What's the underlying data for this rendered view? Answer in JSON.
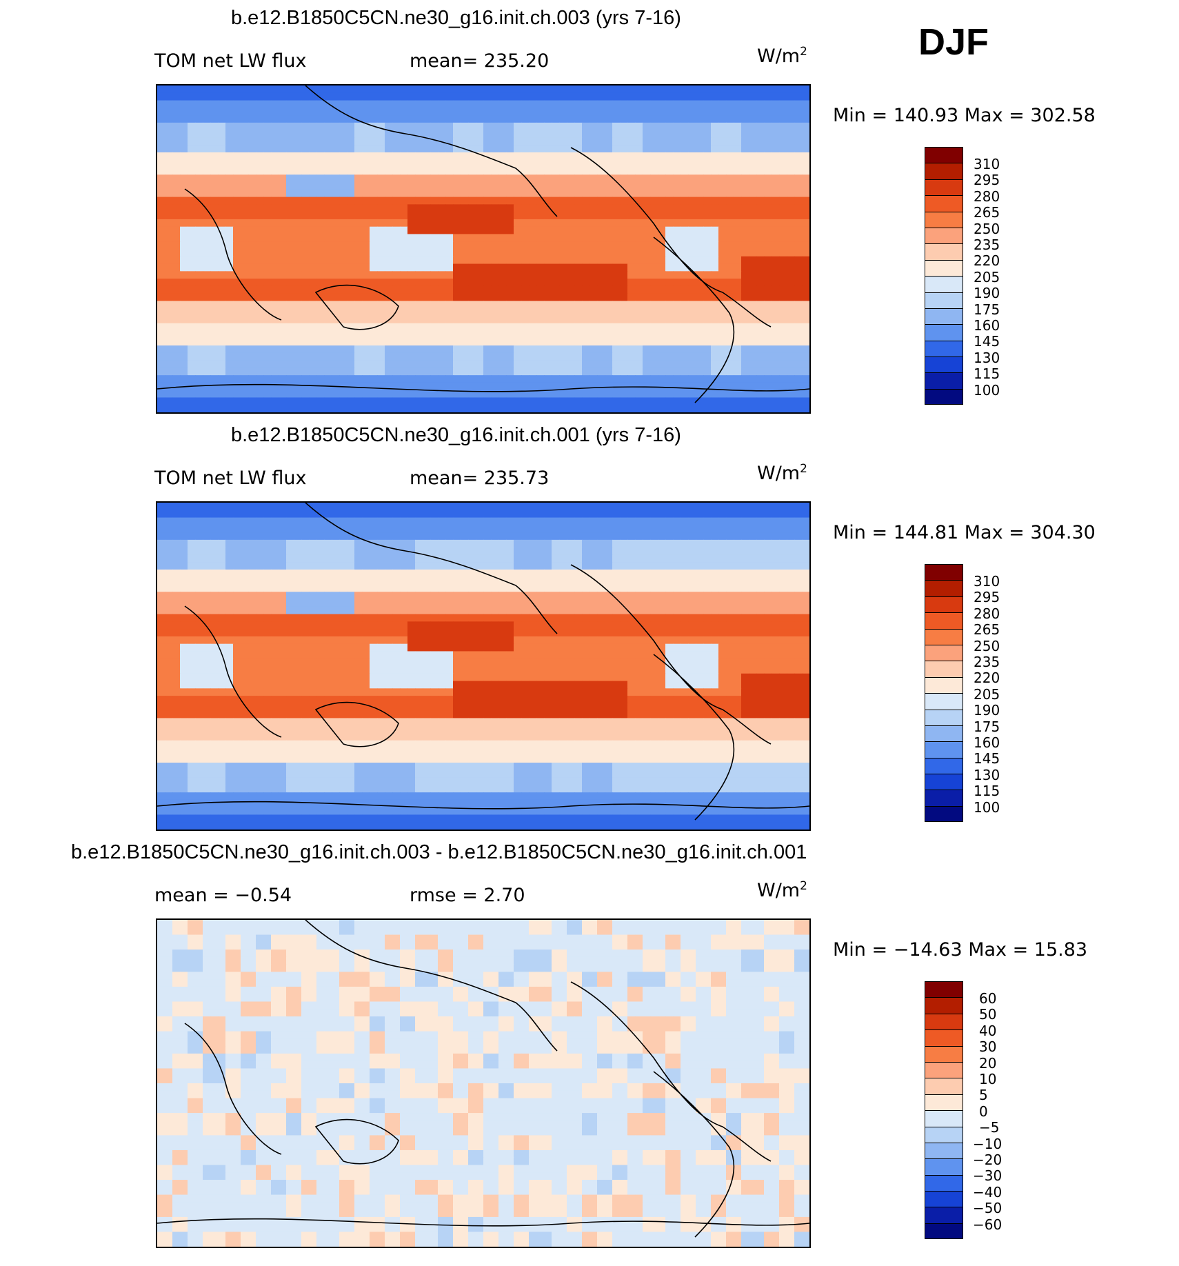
{
  "season": "DJF",
  "panels": [
    {
      "title": "b.e12.B1850C5CN.ne30_g16.init.ch.003 (yrs 7-16)",
      "left_label": "TOM net LW flux",
      "mid_label": "mean= 235.20",
      "units": "W/m",
      "units_sup": "2",
      "minmax": "Min  =  140.93  Max  =  302.58",
      "scale_labels": [
        "310",
        "295",
        "280",
        "265",
        "250",
        "235",
        "220",
        "205",
        "190",
        "175",
        "160",
        "145",
        "130",
        "115",
        "100"
      ]
    },
    {
      "title": "b.e12.B1850C5CN.ne30_g16.init.ch.001 (yrs 7-16)",
      "left_label": "TOM net LW flux",
      "mid_label": "mean= 235.73",
      "units": "W/m",
      "units_sup": "2",
      "minmax": "Min  =  144.81  Max  =  304.30",
      "scale_labels": [
        "310",
        "295",
        "280",
        "265",
        "250",
        "235",
        "220",
        "205",
        "190",
        "175",
        "160",
        "145",
        "130",
        "115",
        "100"
      ]
    },
    {
      "title": "b.e12.B1850C5CN.ne30_g16.init.ch.003 - b.e12.B1850C5CN.ne30_g16.init.ch.001",
      "left_label": "mean =    −0.54",
      "mid_label": "rmse =     2.70",
      "units": "W/m",
      "units_sup": "2",
      "minmax": "Min  =  −14.63  Max  =    15.83",
      "scale_labels": [
        "60",
        "50",
        "40",
        "30",
        "20",
        "10",
        "5",
        "0",
        "−5",
        "−10",
        "−20",
        "−30",
        "−40",
        "−50",
        "−60"
      ]
    }
  ],
  "colors": {
    "scale": [
      "#800000",
      "#b31e00",
      "#d83a10",
      "#ee5a25",
      "#f77d44",
      "#fba27c",
      "#fdccb0",
      "#fde9d8",
      "#d9e8f8",
      "#b7d3f5",
      "#8fb6f2",
      "#5f93ef",
      "#3168e8",
      "#1643d6",
      "#0a1ea8",
      "#020a80"
    ]
  }
}
